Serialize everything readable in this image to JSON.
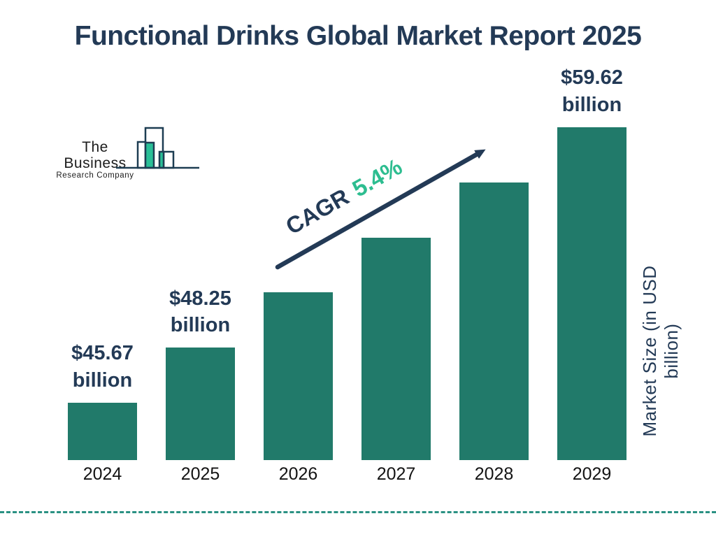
{
  "title": "Functional Drinks Global Market Report 2025",
  "logo": {
    "name_line1": "The Business",
    "name_line2": "Research Company"
  },
  "annotation": {
    "cagr_label": "CAGR",
    "cagr_value": "5.4%"
  },
  "axis": {
    "y_label": "Market Size (in USD billion)"
  },
  "chart_data": {
    "type": "bar",
    "title": "Functional Drinks Global Market Report 2025",
    "categories": [
      "2024",
      "2025",
      "2026",
      "2027",
      "2028",
      "2029"
    ],
    "values": [
      45.67,
      48.25,
      50.86,
      53.61,
      56.5,
      59.62
    ],
    "labeled_values": {
      "2024": "$45.67 billion",
      "2025": "$48.25 billion",
      "2029": "$59.62 billion"
    },
    "bar_labels": [
      {
        "line1": "$45.67",
        "line2": "billion"
      },
      {
        "line1": "$48.25",
        "line2": "billion"
      },
      null,
      null,
      null,
      {
        "line1": "$59.62",
        "line2": "billion"
      }
    ],
    "xlabel": "",
    "ylabel": "Market Size (in USD billion)",
    "annotation": "CAGR 5.4%",
    "legend": false,
    "grid": false,
    "colors": {
      "bar": "#217a6a",
      "navy_text": "#233a56",
      "accent_green": "#2dbd90",
      "dashed_line": "#2b9183",
      "logo_teal": "#2abf97"
    }
  }
}
